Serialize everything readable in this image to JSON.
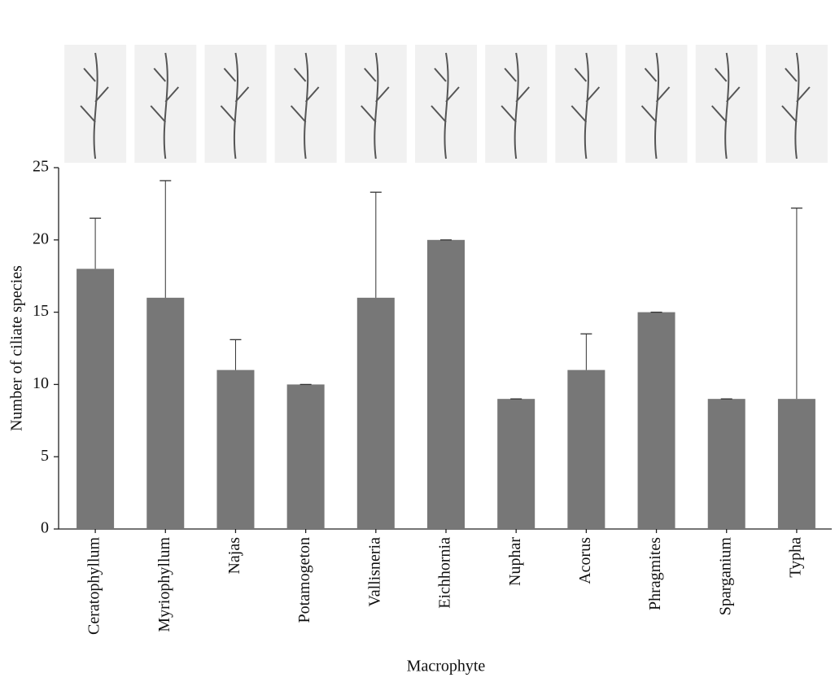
{
  "chart_data": {
    "type": "bar",
    "x_label": "Macrophyte",
    "y_label": "Number of ciliate species",
    "categories": [
      "Ceratophyllum",
      "Myriophyllum",
      "Najas",
      "Potamogeton",
      "Vallisneria",
      "Eichhornia",
      "Nuphar",
      "Acorus",
      "Phragmites",
      "Sparganium",
      "Typha"
    ],
    "values": [
      18,
      16,
      11,
      10,
      16,
      20,
      9,
      11,
      15,
      9,
      9
    ],
    "errors": [
      3.5,
      8.1,
      2.1,
      0,
      7.3,
      0,
      0,
      2.5,
      0,
      0,
      13.2
    ],
    "color": "#777777",
    "ylim": [
      0,
      25
    ],
    "yticks": [
      0,
      5,
      10,
      15,
      20,
      25
    ]
  }
}
